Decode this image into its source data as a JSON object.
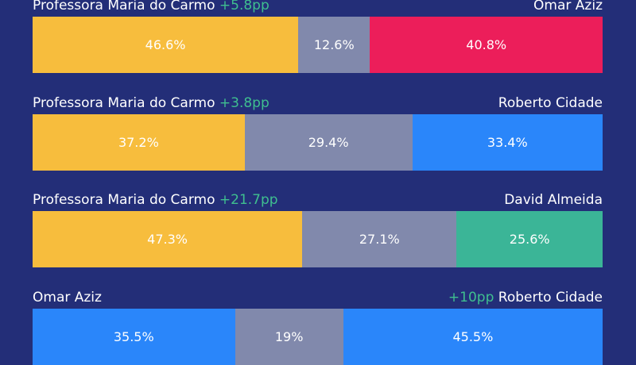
{
  "colors": {
    "background": "#232e78",
    "maria": "#f7bd3d",
    "undecided": "#8189ac",
    "omar": "#ec1e5a",
    "roberto": "#2a86fa",
    "david": "#3bb597",
    "lead_text": "#3fbf8f"
  },
  "chart_data": {
    "type": "bar",
    "orientation": "horizontal-stacked-100",
    "matchups": [
      {
        "left": "Professora Maria do Carmo",
        "right": "Omar Aziz",
        "lead": "+5.8pp",
        "lead_side": "left",
        "segments": [
          {
            "label": "46.6%",
            "value": 46.6,
            "color": "#f7bd3d"
          },
          {
            "label": "12.6%",
            "value": 12.6,
            "color": "#8189ac"
          },
          {
            "label": "40.8%",
            "value": 40.8,
            "color": "#ec1e5a"
          }
        ]
      },
      {
        "left": "Professora Maria do Carmo",
        "right": "Roberto Cidade",
        "lead": "+3.8pp",
        "lead_side": "left",
        "segments": [
          {
            "label": "37.2%",
            "value": 37.2,
            "color": "#f7bd3d"
          },
          {
            "label": "29.4%",
            "value": 29.4,
            "color": "#8189ac"
          },
          {
            "label": "33.4%",
            "value": 33.4,
            "color": "#2a86fa"
          }
        ]
      },
      {
        "left": "Professora Maria do Carmo",
        "right": "David Almeida",
        "lead": "+21.7pp",
        "lead_side": "left",
        "segments": [
          {
            "label": "47.3%",
            "value": 47.3,
            "color": "#f7bd3d"
          },
          {
            "label": "27.1%",
            "value": 27.1,
            "color": "#8189ac"
          },
          {
            "label": "25.6%",
            "value": 25.6,
            "color": "#3bb597"
          }
        ]
      },
      {
        "left": "Omar Aziz",
        "right": "Roberto Cidade",
        "lead": "+10pp",
        "lead_side": "right",
        "segments": [
          {
            "label": "35.5%",
            "value": 35.5,
            "color": "#2a86fa"
          },
          {
            "label": "19%",
            "value": 19,
            "color": "#8189ac"
          },
          {
            "label": "45.5%",
            "value": 45.5,
            "color": "#2a86fa"
          }
        ]
      }
    ]
  }
}
